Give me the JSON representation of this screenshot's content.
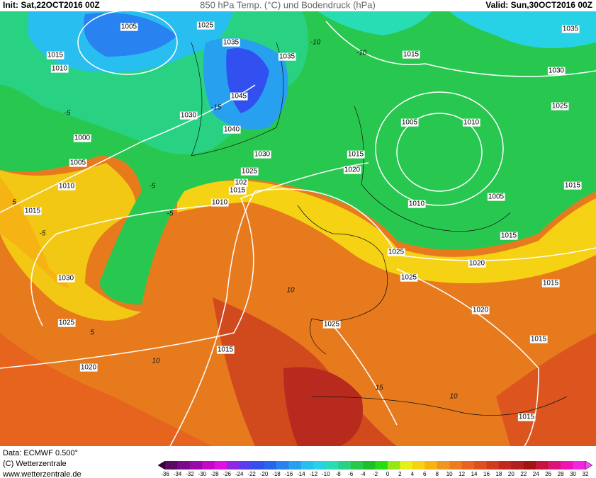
{
  "header": {
    "init": "Init: Sat,22OCT2016 00Z",
    "title": "850 hPa Temp. (°C) und Bodendruck (hPa)",
    "valid": "Valid: Sun,30OCT2016 00Z"
  },
  "footer": {
    "data": "Data: ECMWF  0.500°",
    "copyright": "(C) Wetterzentrale",
    "url": "www.wetterzentrale.de"
  },
  "colorbar": {
    "labels": [
      -36,
      -34,
      -32,
      -30,
      -28,
      -26,
      -24,
      -22,
      -20,
      -18,
      -16,
      -14,
      -12,
      -10,
      -8,
      -6,
      -4,
      -2,
      0,
      2,
      4,
      6,
      8,
      10,
      12,
      14,
      16,
      18,
      20,
      22,
      24,
      26,
      28,
      30,
      32
    ],
    "colors": [
      "#3c003c",
      "#5a0a64",
      "#7a0a8a",
      "#9a0aaa",
      "#c00ac8",
      "#e010e0",
      "#8c28e6",
      "#5a3cf0",
      "#3250f0",
      "#2864f0",
      "#2882f0",
      "#28a0f0",
      "#28bef0",
      "#28d2e6",
      "#28dcb4",
      "#28d282",
      "#28c850",
      "#1ebe28",
      "#28dc14",
      "#96e614",
      "#e6f014",
      "#f5d214",
      "#f5b414",
      "#f0961e",
      "#eb7d1e",
      "#e6641e",
      "#dc501e",
      "#d23c1e",
      "#c3281e",
      "#b41e1e",
      "#a01414",
      "#c8143c",
      "#dc1478",
      "#f014b4",
      "#f028dc",
      "#f050f0"
    ]
  },
  "isobar_labels": [
    "1005",
    "1025",
    "1015",
    "1010",
    "1035",
    "1035",
    "1015",
    "1035",
    "1030",
    "1045",
    "1030",
    "1040",
    "1025",
    "1005",
    "1010",
    "1000",
    "1030",
    "1015",
    "1005",
    "1025",
    "1020",
    "1010",
    "102",
    "1015",
    "1015",
    "1005",
    "1010",
    "1010",
    "1015",
    "1015",
    "1025",
    "1020",
    "1025",
    "1030",
    "1015",
    "1020",
    "1025",
    "1025",
    "1015",
    "1015",
    "1020",
    "1015"
  ],
  "temp_labels": [
    "-10",
    "-10",
    "-5",
    "-15",
    "-5",
    "-5",
    "5",
    "10",
    "10",
    "15",
    "-5",
    "5",
    "10"
  ]
}
